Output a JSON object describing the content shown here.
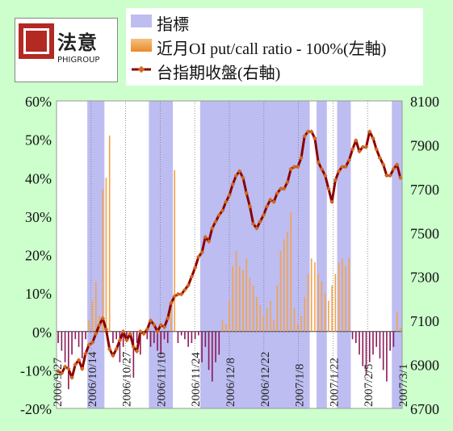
{
  "logo": {
    "cn": "法意",
    "en": "PHIGROUP"
  },
  "legend": [
    {
      "label": "指標",
      "color": "#bdbdf2"
    },
    {
      "label": "近月OI put/call ratio - 100%(左軸)",
      "color": "#f4a24a"
    },
    {
      "label": "台指期收盤(右軸)",
      "color": "#8b0000"
    }
  ],
  "chart_data": {
    "type": "line",
    "left_axis": {
      "ticks": [
        "60%",
        "50%",
        "40%",
        "30%",
        "20%",
        "10%",
        "0%",
        "-10%",
        "-20%"
      ],
      "range": [
        -20,
        60
      ]
    },
    "right_axis": {
      "ticks": [
        "8100",
        "7900",
        "7700",
        "7500",
        "7300",
        "7100",
        "6900",
        "6700"
      ],
      "range": [
        6700,
        8100
      ]
    },
    "x_tick_labels": [
      "2006/9/27",
      "2006/10/14",
      "2006/10/27",
      "2006/11/10",
      "2006/11/24",
      "2006/12/8",
      "2006/12/22",
      "2007/1/8",
      "2007/1/22",
      "2007/2/5",
      "2007/3/1"
    ],
    "n": 101,
    "indicator_bands": [
      [
        9,
        14
      ],
      [
        27,
        34
      ],
      [
        42,
        74
      ],
      [
        76,
        79
      ],
      [
        82,
        86
      ],
      [
        98,
        101
      ]
    ],
    "series": [
      {
        "name": "近月OI put/call ratio - 100%(左軸)",
        "values": [
          -3,
          -5,
          -8,
          -15,
          -6,
          -2,
          -4,
          -7,
          -2,
          3,
          8,
          13,
          4,
          37,
          40,
          51,
          -3,
          -2,
          -8,
          -4,
          -2,
          -1,
          -12,
          -3,
          -6,
          -1,
          -2,
          -4,
          -3,
          -5,
          -6,
          -2,
          -3,
          7,
          42,
          -3,
          -1,
          -2,
          -4,
          -3,
          -2,
          -1,
          -8,
          -4,
          -10,
          -13,
          -8,
          -6,
          3,
          2,
          8,
          17,
          21,
          17,
          16,
          19,
          14,
          12,
          9,
          7,
          4,
          6,
          8,
          3,
          12,
          21,
          24,
          26,
          31,
          6,
          2,
          4,
          9,
          15,
          19,
          18,
          15,
          13,
          10,
          8,
          12,
          15,
          18,
          19,
          17,
          19,
          -2,
          -3,
          -6,
          -9,
          -11,
          -8,
          -6,
          -4,
          -7,
          -10,
          -13,
          -5,
          -4,
          5,
          1
        ]
      },
      {
        "name": "台指期收盤(右軸)",
        "values": [
          6870,
          6860,
          6890,
          6880,
          6840,
          6900,
          6920,
          6880,
          6950,
          6990,
          7000,
          7040,
          7080,
          7110,
          7060,
          6970,
          6940,
          6970,
          7010,
          7050,
          7010,
          7040,
          6980,
          6960,
          7050,
          7040,
          7060,
          7100,
          7080,
          7050,
          7080,
          7070,
          7110,
          7180,
          7210,
          7220,
          7220,
          7240,
          7260,
          7300,
          7340,
          7390,
          7410,
          7480,
          7460,
          7520,
          7550,
          7580,
          7600,
          7640,
          7670,
          7720,
          7760,
          7780,
          7750,
          7680,
          7620,
          7540,
          7520,
          7550,
          7580,
          7620,
          7650,
          7640,
          7680,
          7700,
          7700,
          7730,
          7790,
          7800,
          7800,
          7840,
          7940,
          7960,
          7960,
          7930,
          7820,
          7790,
          7760,
          7700,
          7640,
          7740,
          7780,
          7800,
          7800,
          7830,
          7880,
          7920,
          7870,
          7890,
          7890,
          7960,
          7930,
          7880,
          7840,
          7810,
          7760,
          7760,
          7790,
          7810,
          7750
        ]
      }
    ]
  }
}
